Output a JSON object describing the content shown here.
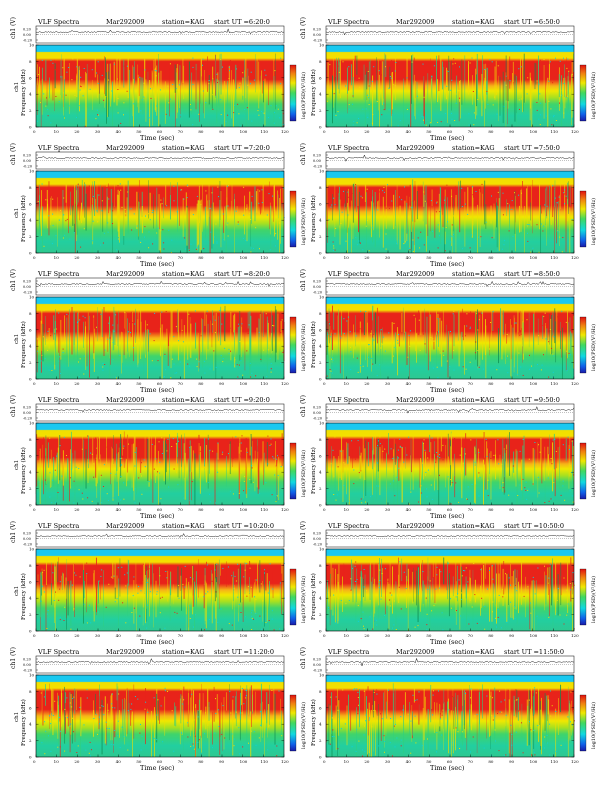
{
  "colors": {
    "background": "#ffffff",
    "spectrogram_low": "#00c8c8",
    "spectrogram_mid": "#33d36a",
    "spectrogram_high": "#ffe600",
    "spectrogram_peak": "#e8201a",
    "band_top": "#19c8f0"
  },
  "chart_data": [
    {
      "type": "heatmap",
      "title": "VLF Spectra",
      "date": "Mar292009",
      "station": "station=KAG",
      "start": "start  UT  =6:20:0",
      "xlabel": "Time  (sec)",
      "ylabel": "Frequency  (kHz)",
      "ylabel2": "ch1",
      "colorbar_label": "log10(PSD)(V²/Hz)",
      "top_ylabel": "ch1 (V)",
      "xlim": [
        0,
        120
      ],
      "ylim": [
        0,
        10
      ],
      "xticks": [
        "0",
        "10",
        "20",
        "30",
        "40",
        "50",
        "60",
        "70",
        "80",
        "90",
        "100",
        "110",
        "120"
      ],
      "yticks": [
        "0",
        "2",
        "4",
        "6",
        "8",
        "10"
      ],
      "top_yticks": [
        "0.20",
        "0.00",
        "-0.20"
      ]
    },
    {
      "type": "heatmap",
      "title": "VLF Spectra",
      "date": "Mar292009",
      "station": "station=KAG",
      "start": "start  UT  =6:50:0",
      "xlabel": "Time  (sec)",
      "ylabel": "Frequency  (kHz)",
      "ylabel2": "",
      "colorbar_label": "log10(PSD)(V²/Hz)",
      "top_ylabel": "ch1 (V)",
      "xlim": [
        0,
        120
      ],
      "ylim": [
        0,
        10
      ],
      "xticks": [
        "0",
        "10",
        "20",
        "30",
        "40",
        "50",
        "60",
        "70",
        "80",
        "90",
        "100",
        "110",
        "120"
      ],
      "yticks": [
        "0",
        "2",
        "4",
        "6",
        "8",
        "10"
      ],
      "top_yticks": [
        "0.20",
        "0.00",
        "-0.20"
      ]
    },
    {
      "type": "heatmap",
      "title": "VLF Spectra",
      "date": "Mar292009",
      "station": "station=KAG",
      "start": "start  UT  =7:20:0",
      "xlabel": "Time  (sec)",
      "ylabel": "Frequency  (kHz)",
      "ylabel2": "ch1",
      "colorbar_label": "log10(PSD)(V²/Hz)",
      "top_ylabel": "ch1 (V)",
      "xlim": [
        0,
        120
      ],
      "ylim": [
        0,
        10
      ],
      "xticks": [
        "0",
        "10",
        "20",
        "30",
        "40",
        "50",
        "60",
        "70",
        "80",
        "90",
        "100",
        "110",
        "120"
      ],
      "yticks": [
        "0",
        "2",
        "4",
        "6",
        "8",
        "10"
      ],
      "top_yticks": [
        "0.20",
        "0.00",
        "-0.20"
      ]
    },
    {
      "type": "heatmap",
      "title": "VLF Spectra",
      "date": "Mar292009",
      "station": "station=KAG",
      "start": "start  UT  =7:50:0",
      "xlabel": "Time  (sec)",
      "ylabel": "Frequency  (kHz)",
      "ylabel2": "",
      "colorbar_label": "log10(PSD)(V²/Hz)",
      "top_ylabel": "ch1 (V)",
      "xlim": [
        0,
        120
      ],
      "ylim": [
        0,
        10
      ],
      "xticks": [
        "0",
        "10",
        "20",
        "30",
        "40",
        "50",
        "60",
        "70",
        "80",
        "90",
        "100",
        "110",
        "120"
      ],
      "yticks": [
        "0",
        "2",
        "4",
        "6",
        "8",
        "10"
      ],
      "top_yticks": [
        "0.20",
        "0.00",
        "-0.20"
      ]
    },
    {
      "type": "heatmap",
      "title": "VLF Spectra",
      "date": "Mar292009",
      "station": "station=KAG",
      "start": "start  UT  =8:20:0",
      "xlabel": "Time  (sec)",
      "ylabel": "Frequency  (kHz)",
      "ylabel2": "ch1",
      "colorbar_label": "log10(PSD)(V²/Hz)",
      "top_ylabel": "ch1 (V)",
      "xlim": [
        0,
        120
      ],
      "ylim": [
        0,
        10
      ],
      "xticks": [
        "0",
        "10",
        "20",
        "30",
        "40",
        "50",
        "60",
        "70",
        "80",
        "90",
        "100",
        "110",
        "120"
      ],
      "yticks": [
        "0",
        "2",
        "4",
        "6",
        "8",
        "10"
      ],
      "top_yticks": [
        "0.20",
        "0.00",
        "-0.20"
      ]
    },
    {
      "type": "heatmap",
      "title": "VLF Spectra",
      "date": "Mar292009",
      "station": "station=KAG",
      "start": "start  UT  =8:50:0",
      "xlabel": "Time  (sec)",
      "ylabel": "Frequency  (kHz)",
      "ylabel2": "",
      "colorbar_label": "log10(PSD)(V²/Hz)",
      "top_ylabel": "ch1 (V)",
      "xlim": [
        0,
        120
      ],
      "ylim": [
        0,
        10
      ],
      "xticks": [
        "0",
        "10",
        "20",
        "30",
        "40",
        "50",
        "60",
        "70",
        "80",
        "90",
        "100",
        "110",
        "120"
      ],
      "yticks": [
        "0",
        "2",
        "4",
        "6",
        "8",
        "10"
      ],
      "top_yticks": [
        "0.20",
        "0.00",
        "-0.20"
      ]
    },
    {
      "type": "heatmap",
      "title": "VLF Spectra",
      "date": "Mar292009",
      "station": "station=KAG",
      "start": "start  UT  =9:20:0",
      "xlabel": "Time  (sec)",
      "ylabel": "Frequency  (kHz)",
      "ylabel2": "ch1",
      "colorbar_label": "log10(PSD)(V²/Hz)",
      "top_ylabel": "ch1 (V)",
      "xlim": [
        0,
        120
      ],
      "ylim": [
        0,
        10
      ],
      "xticks": [
        "0",
        "10",
        "20",
        "30",
        "40",
        "50",
        "60",
        "70",
        "80",
        "90",
        "100",
        "110",
        "120"
      ],
      "yticks": [
        "0",
        "2",
        "4",
        "6",
        "8",
        "10"
      ],
      "top_yticks": [
        "0.20",
        "0.00",
        "-0.20"
      ]
    },
    {
      "type": "heatmap",
      "title": "VLF Spectra",
      "date": "Mar292009",
      "station": "station=KAG",
      "start": "start  UT  =9:50:0",
      "xlabel": "Time  (sec)",
      "ylabel": "Frequency  (kHz)",
      "ylabel2": "",
      "colorbar_label": "log10(PSD)(V²/Hz)",
      "top_ylabel": "ch1 (V)",
      "xlim": [
        0,
        120
      ],
      "ylim": [
        0,
        10
      ],
      "xticks": [
        "0",
        "10",
        "20",
        "30",
        "40",
        "50",
        "60",
        "70",
        "80",
        "90",
        "100",
        "110",
        "120"
      ],
      "yticks": [
        "0",
        "2",
        "4",
        "6",
        "8",
        "10"
      ],
      "top_yticks": [
        "0.20",
        "0.00",
        "-0.20"
      ]
    },
    {
      "type": "heatmap",
      "title": "VLF Spectra",
      "date": "Mar292009",
      "station": "station=KAG",
      "start": "start  UT  =10:20:0",
      "xlabel": "Time  (sec)",
      "ylabel": "Frequency  (kHz)",
      "ylabel2": "ch1",
      "colorbar_label": "log10(PSD)(V²/Hz)",
      "top_ylabel": "ch1 (V)",
      "xlim": [
        0,
        120
      ],
      "ylim": [
        0,
        10
      ],
      "xticks": [
        "0",
        "10",
        "20",
        "30",
        "40",
        "50",
        "60",
        "70",
        "80",
        "90",
        "100",
        "110",
        "120"
      ],
      "yticks": [
        "0",
        "2",
        "4",
        "6",
        "8",
        "10"
      ],
      "top_yticks": [
        "0.20",
        "0.00",
        "-0.20"
      ]
    },
    {
      "type": "heatmap",
      "title": "VLF Spectra",
      "date": "Mar292009",
      "station": "station=KAG",
      "start": "start  UT  =10:50:0",
      "xlabel": "Time  (sec)",
      "ylabel": "Frequency  (kHz)",
      "ylabel2": "",
      "colorbar_label": "log10(PSD)(V²/Hz)",
      "top_ylabel": "ch1 (V)",
      "xlim": [
        0,
        120
      ],
      "ylim": [
        0,
        10
      ],
      "xticks": [
        "0",
        "10",
        "20",
        "30",
        "40",
        "50",
        "60",
        "70",
        "80",
        "90",
        "100",
        "110",
        "120"
      ],
      "yticks": [
        "0",
        "2",
        "4",
        "6",
        "8",
        "10"
      ],
      "top_yticks": [
        "0.20",
        "0.00",
        "-0.20"
      ]
    },
    {
      "type": "heatmap",
      "title": "VLF Spectra",
      "date": "Mar292009",
      "station": "station=KAG",
      "start": "start  UT  =11:20:0",
      "xlabel": "Time  (sec)",
      "ylabel": "Frequency  (kHz)",
      "ylabel2": "ch1",
      "colorbar_label": "log10(PSD)(V²/Hz)",
      "top_ylabel": "ch1 (V)",
      "xlim": [
        0,
        120
      ],
      "ylim": [
        0,
        10
      ],
      "xticks": [
        "0",
        "10",
        "20",
        "30",
        "40",
        "50",
        "60",
        "70",
        "80",
        "90",
        "100",
        "110",
        "120"
      ],
      "yticks": [
        "0",
        "2",
        "4",
        "6",
        "8",
        "10"
      ],
      "top_yticks": [
        "0.20",
        "0.00",
        "-0.20"
      ]
    },
    {
      "type": "heatmap",
      "title": "VLF Spectra",
      "date": "Mar292009",
      "station": "station=KAG",
      "start": "start  UT  =11:50:0",
      "xlabel": "Time  (sec)",
      "ylabel": "Frequency  (kHz)",
      "ylabel2": "",
      "colorbar_label": "log10(PSD)(V²/Hz)",
      "top_ylabel": "ch1 (V)",
      "xlim": [
        0,
        120
      ],
      "ylim": [
        0,
        10
      ],
      "xticks": [
        "0",
        "10",
        "20",
        "30",
        "40",
        "50",
        "60",
        "70",
        "80",
        "90",
        "100",
        "110",
        "120"
      ],
      "yticks": [
        "0",
        "2",
        "4",
        "6",
        "8",
        "10"
      ],
      "top_yticks": [
        "0.20",
        "0.00",
        "-0.20"
      ]
    }
  ]
}
